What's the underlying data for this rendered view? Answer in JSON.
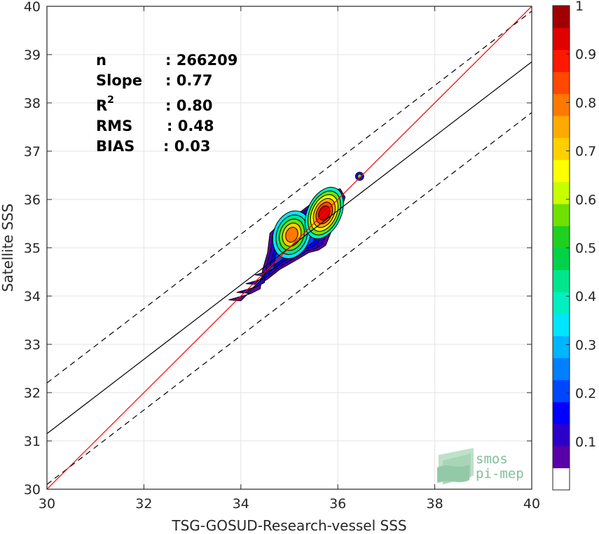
{
  "chart_data": {
    "type": "contour-scatter",
    "xlabel": "TSG-GOSUD-Research-vessel SSS",
    "ylabel": "Satellite SSS",
    "xlim": [
      30,
      40
    ],
    "ylim": [
      30,
      40
    ],
    "x_ticks": [
      "30",
      "32",
      "34",
      "36",
      "38",
      "40"
    ],
    "y_ticks": [
      "30",
      "31",
      "32",
      "33",
      "34",
      "35",
      "36",
      "37",
      "38",
      "39",
      "40"
    ],
    "grid": true,
    "stats": [
      {
        "label": "n",
        "value": ": 266209"
      },
      {
        "label": "Slope",
        "value": ": 0.77"
      },
      {
        "label": "R",
        "sup": "2",
        "value": ": 0.80"
      },
      {
        "label": "RMS",
        "value": ": 0.48"
      },
      {
        "label": "BIAS",
        "value": ": 0.03"
      }
    ],
    "lines": {
      "identity": {
        "x": [
          30,
          40
        ],
        "y": [
          30,
          40
        ],
        "color": "#ff0000"
      },
      "regression": {
        "x": [
          30,
          40
        ],
        "y": [
          31.15,
          38.85
        ],
        "color": "#000000"
      },
      "upper_bound": {
        "x": [
          30,
          40
        ],
        "y": [
          32.2,
          39.9
        ],
        "color": "#000000",
        "dash": true
      },
      "lower_bound": {
        "x": [
          30,
          40
        ],
        "y": [
          30.1,
          37.8
        ],
        "color": "#000000",
        "dash": true
      }
    },
    "colorbar": {
      "ticks": [
        "0.1",
        "0.2",
        "0.3",
        "0.4",
        "0.5",
        "0.6",
        "0.7",
        "0.8",
        "0.9",
        "1"
      ],
      "range": [
        0,
        1
      ],
      "colors": [
        "#ffffff",
        "#5a00a8",
        "#2b00c8",
        "#0000ff",
        "#0046ff",
        "#0080ff",
        "#00b4ff",
        "#00e6ff",
        "#00f0c0",
        "#00e68c",
        "#00d24a",
        "#20d020",
        "#70e000",
        "#c8ff00",
        "#ffff00",
        "#ffd000",
        "#ffaa00",
        "#ff7800",
        "#ff4800",
        "#ff1800",
        "#e00000",
        "#a00000"
      ]
    },
    "density": {
      "outer": [
        [
          33.75,
          33.92
        ],
        [
          34.2,
          34.05
        ],
        [
          34.4,
          34.15
        ],
        [
          34.45,
          34.55
        ],
        [
          34.55,
          34.9
        ],
        [
          34.6,
          35.3
        ],
        [
          34.85,
          35.55
        ],
        [
          35.2,
          35.72
        ],
        [
          35.5,
          35.95
        ],
        [
          35.8,
          36.18
        ],
        [
          36.05,
          36.22
        ],
        [
          36.15,
          36.05
        ],
        [
          36.05,
          35.7
        ],
        [
          35.85,
          35.3
        ],
        [
          35.75,
          35.05
        ],
        [
          35.6,
          34.95
        ],
        [
          35.4,
          34.9
        ],
        [
          35.15,
          34.75
        ],
        [
          34.8,
          34.55
        ],
        [
          34.55,
          34.35
        ],
        [
          34.3,
          34.2
        ],
        [
          34.0,
          33.9
        ],
        [
          33.75,
          33.92
        ]
      ],
      "blob": {
        "x": 36.45,
        "y": 36.48,
        "levels": [
          0.15,
          0.55
        ]
      },
      "peaks": [
        {
          "x": 35.05,
          "y": 35.27,
          "levels": [
            0.35,
            0.45,
            0.55,
            0.7,
            0.8
          ]
        },
        {
          "x": 35.72,
          "y": 35.72,
          "levels": [
            0.4,
            0.55,
            0.65,
            0.75,
            0.85,
            0.95
          ]
        }
      ]
    }
  },
  "logo": {
    "line1": "smos",
    "line2": "pi-mep"
  }
}
